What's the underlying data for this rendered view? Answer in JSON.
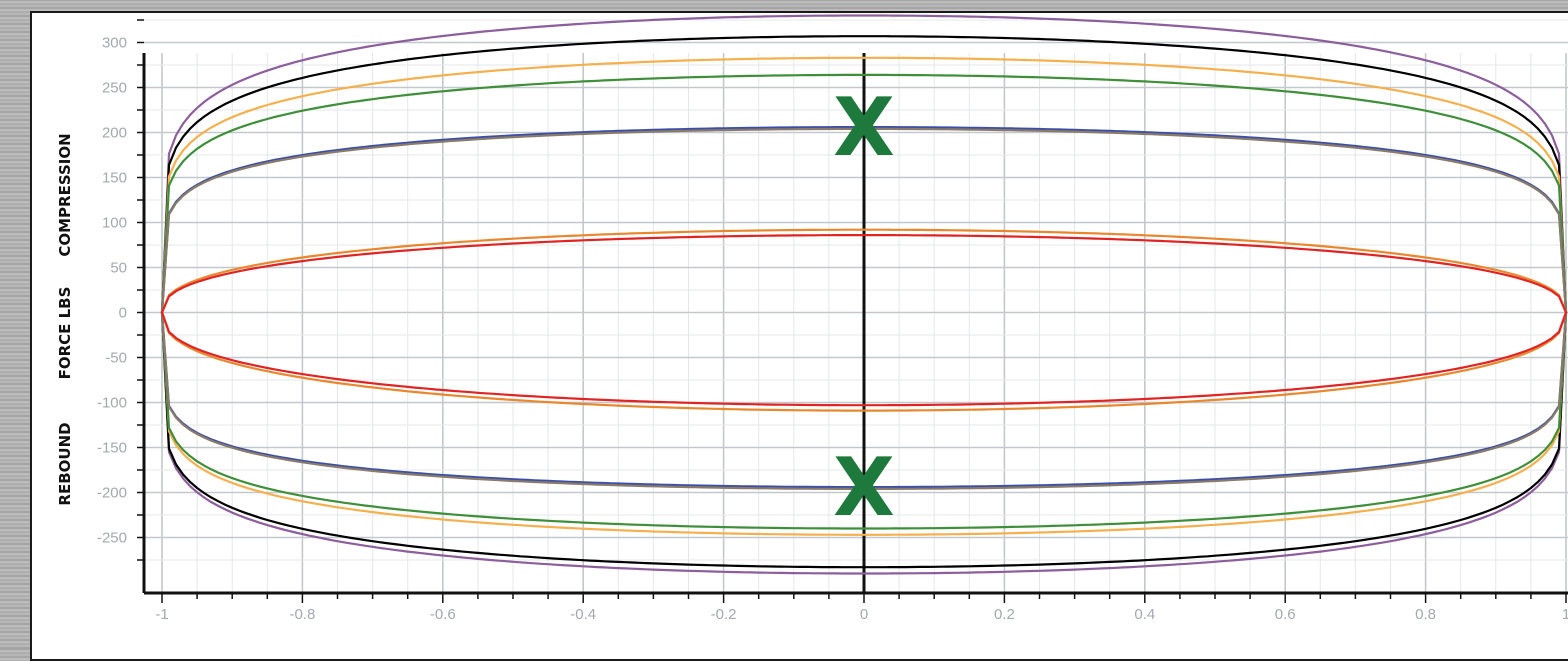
{
  "chart_data": {
    "type": "line",
    "title": "",
    "y_titles": [
      "COMPRESSION",
      "FORCE LBS",
      "REBOUND"
    ],
    "xlim": [
      -1,
      1
    ],
    "ylim": [
      -300,
      340
    ],
    "x_ticks": [
      "-1",
      "-0.8",
      "-0.6",
      "-0.4",
      "-0.2",
      "0",
      "0.2",
      "0.4",
      "0.6",
      "0.8",
      "1"
    ],
    "y_ticks": [
      "300",
      "250",
      "200",
      "150",
      "100",
      "50",
      "0",
      "-50",
      "-100",
      "-150",
      "-200",
      "-250"
    ],
    "grid": true,
    "markers": [
      {
        "label": "X",
        "x": 0,
        "y": 206
      },
      {
        "label": "X",
        "x": 0,
        "y": -194
      }
    ],
    "series": [
      {
        "color": "#8c5e9c",
        "comp_peak": 330,
        "reb_peak": -290
      },
      {
        "color": "#000000",
        "comp_peak": 307,
        "reb_peak": -283
      },
      {
        "color": "#f5b04e",
        "comp_peak": 283,
        "reb_peak": -247
      },
      {
        "color": "#3f8f3a",
        "comp_peak": 264,
        "reb_peak": -240
      },
      {
        "color": "#3a4fa8",
        "comp_peak": 206,
        "reb_peak": -194
      },
      {
        "color": "#8a7a6a",
        "comp_peak": 204,
        "reb_peak": -196
      },
      {
        "color": "#e8872e",
        "comp_peak": 92,
        "reb_peak": -109
      },
      {
        "color": "#e02424",
        "comp_peak": 86,
        "reb_peak": -103
      }
    ]
  }
}
